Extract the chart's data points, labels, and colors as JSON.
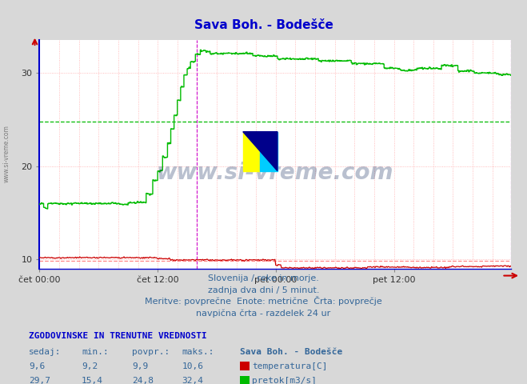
{
  "title": "Sava Boh. - Bodešče",
  "title_color": "#0000cc",
  "bg_color": "#d8d8d8",
  "plot_bg_color": "#ffffff",
  "ylim": [
    9.0,
    33.5
  ],
  "yticks": [
    10,
    20,
    30
  ],
  "xtick_labels": [
    "čet 00:00",
    "čet 12:00",
    "pet 00:00",
    "pet 12:00"
  ],
  "total_points": 576,
  "temp_color": "#cc0000",
  "flow_color": "#00bb00",
  "temp_avg": 9.9,
  "flow_avg": 24.8,
  "temp_min": 9.2,
  "temp_max": 10.6,
  "temp_current": 9.6,
  "flow_min": 15.4,
  "flow_max": 32.4,
  "flow_current": 29.7,
  "info_line1": "Slovenija / reke in morje.",
  "info_line2": "zadnja dva dni / 5 minut.",
  "info_line3": "Meritve: povprečne  Enote: metrične  Črta: povprečje",
  "info_line4": "navpična črta - razdelek 24 ur",
  "table_header": "ZGODOVINSKE IN TRENUTNE VREDNOSTI",
  "col_sedaj": "sedaj:",
  "col_min": "min.:",
  "col_povpr": "povpr.:",
  "col_maks": "maks.:",
  "col_station": "Sava Boh. - Bodešče",
  "label_temp": "temperatura[C]",
  "label_flow": "pretok[m3/s]",
  "watermark": "www.si-vreme.com"
}
